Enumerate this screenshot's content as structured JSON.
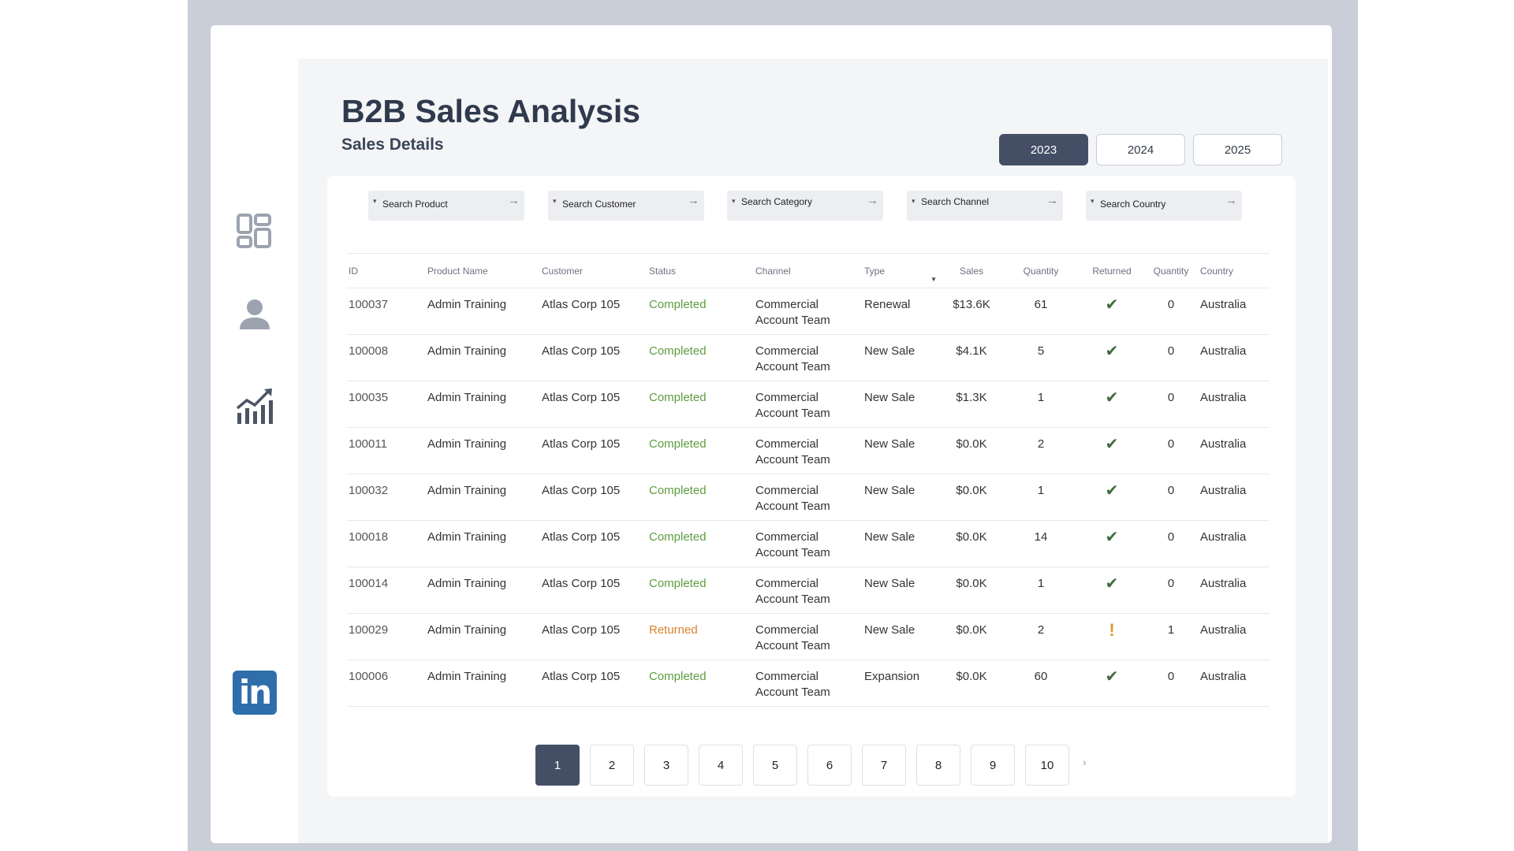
{
  "header": {
    "title": "B2B Sales Analysis",
    "subtitle": "Sales Details"
  },
  "years": [
    {
      "label": "2023",
      "active": true
    },
    {
      "label": "2024",
      "active": false
    },
    {
      "label": "2025",
      "active": false
    }
  ],
  "sidebar": {
    "icons": [
      "dashboard-icon",
      "user-icon",
      "chart-icon"
    ],
    "social": {
      "icon": "linkedin-icon",
      "text": "in"
    }
  },
  "filters": [
    {
      "placeholder": "Search Product"
    },
    {
      "placeholder": "Search Customer"
    },
    {
      "placeholder": "Search Category"
    },
    {
      "placeholder": "Search Channel"
    },
    {
      "placeholder": "Search Country"
    }
  ],
  "table": {
    "columns": [
      "ID",
      "Product Name",
      "Customer",
      "Status",
      "Channel",
      "Type",
      "Sales",
      "Quantity",
      "Returned",
      "Quantity",
      "Country"
    ],
    "rows": [
      {
        "id": "100037",
        "product": "Admin Training",
        "customer": "Atlas Corp 105",
        "status": "Completed",
        "channel_1": "Commercial",
        "channel_2": "Account Team",
        "type": "Renewal",
        "sales": "$13.6K",
        "quantity": "61",
        "returned": false,
        "returned_qty": "0",
        "country": "Australia"
      },
      {
        "id": "100008",
        "product": "Admin Training",
        "customer": "Atlas Corp 105",
        "status": "Completed",
        "channel_1": "Commercial",
        "channel_2": "Account Team",
        "type": "New Sale",
        "sales": "$4.1K",
        "quantity": "5",
        "returned": false,
        "returned_qty": "0",
        "country": "Australia"
      },
      {
        "id": "100035",
        "product": "Admin Training",
        "customer": "Atlas Corp 105",
        "status": "Completed",
        "channel_1": "Commercial",
        "channel_2": "Account Team",
        "type": "New Sale",
        "sales": "$1.3K",
        "quantity": "1",
        "returned": false,
        "returned_qty": "0",
        "country": "Australia"
      },
      {
        "id": "100011",
        "product": "Admin Training",
        "customer": "Atlas Corp 105",
        "status": "Completed",
        "channel_1": "Commercial",
        "channel_2": "Account Team",
        "type": "New Sale",
        "sales": "$0.0K",
        "quantity": "2",
        "returned": false,
        "returned_qty": "0",
        "country": "Australia"
      },
      {
        "id": "100032",
        "product": "Admin Training",
        "customer": "Atlas Corp 105",
        "status": "Completed",
        "channel_1": "Commercial",
        "channel_2": "Account Team",
        "type": "New Sale",
        "sales": "$0.0K",
        "quantity": "1",
        "returned": false,
        "returned_qty": "0",
        "country": "Australia"
      },
      {
        "id": "100018",
        "product": "Admin Training",
        "customer": "Atlas Corp 105",
        "status": "Completed",
        "channel_1": "Commercial",
        "channel_2": "Account Team",
        "type": "New Sale",
        "sales": "$0.0K",
        "quantity": "14",
        "returned": false,
        "returned_qty": "0",
        "country": "Australia"
      },
      {
        "id": "100014",
        "product": "Admin Training",
        "customer": "Atlas Corp 105",
        "status": "Completed",
        "channel_1": "Commercial",
        "channel_2": "Account Team",
        "type": "New Sale",
        "sales": "$0.0K",
        "quantity": "1",
        "returned": false,
        "returned_qty": "0",
        "country": "Australia"
      },
      {
        "id": "100029",
        "product": "Admin Training",
        "customer": "Atlas Corp 105",
        "status": "Returned",
        "channel_1": "Commercial",
        "channel_2": "Account Team",
        "type": "New Sale",
        "sales": "$0.0K",
        "quantity": "2",
        "returned": true,
        "returned_qty": "1",
        "country": "Australia"
      },
      {
        "id": "100006",
        "product": "Admin Training",
        "customer": "Atlas Corp 105",
        "status": "Completed",
        "channel_1": "Commercial",
        "channel_2": "Account Team",
        "type": "Expansion",
        "sales": "$0.0K",
        "quantity": "60",
        "returned": false,
        "returned_qty": "0",
        "country": "Australia"
      }
    ]
  },
  "pagination": {
    "pages": [
      "1",
      "2",
      "3",
      "4",
      "5",
      "6",
      "7",
      "8",
      "9",
      "10"
    ],
    "current": "1",
    "next_icon": "chevron-right-icon"
  },
  "colors": {
    "accent": "#444f66",
    "completed": "#5e9c3f",
    "returned": "#d9822b",
    "check": "#3f6b3d",
    "warning": "#d99a2b",
    "linkedin": "#2f6eab"
  }
}
